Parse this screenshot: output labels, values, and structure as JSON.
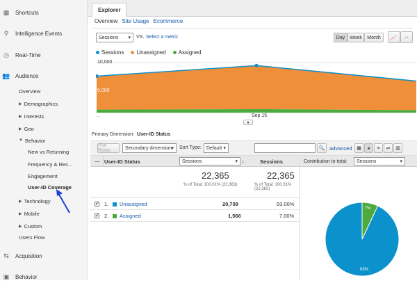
{
  "sidebar": {
    "shortcuts": "Shortcuts",
    "intelligence": "Intelligence Events",
    "realtime": "Real-Time",
    "audience": "Audience",
    "overview": "Overview",
    "demographics": "Demographics",
    "interests": "Interests",
    "geo": "Geo",
    "behavior": "Behavior",
    "new_vs_returning": "New vs Returning",
    "frequency": "Frequency & Rec...",
    "engagement": "Engagement",
    "userid_coverage": "User-ID Coverage",
    "technology": "Technology",
    "mobile": "Mobile",
    "custom": "Custom",
    "users_flow": "Users Flow",
    "acquisition": "Acquisition",
    "behavior_main": "Behavior"
  },
  "explorer": {
    "tab": "Explorer",
    "subtabs": [
      "Overview",
      "Site Usage",
      "Ecommerce"
    ],
    "metric_select": "Sessions",
    "vs": "VS.",
    "select_metric": "Select a metric",
    "day": "Day",
    "week": "Week",
    "month": "Month"
  },
  "legend": {
    "sessions": "Sessions",
    "unassigned": "Unassigned",
    "assigned": "Assigned"
  },
  "chart_data": {
    "type": "area",
    "y_tick_top": "10,000",
    "y_tick_mid": "5,000",
    "x_tick": "Sep 15",
    "x_tick_left": "...",
    "series": [
      {
        "name": "Sessions",
        "values": [
          7300,
          9400,
          6300
        ]
      },
      {
        "name": "Unassigned",
        "values": [
          6700,
          8800,
          5900
        ]
      },
      {
        "name": "Assigned",
        "values": [
          600,
          700,
          500
        ]
      }
    ],
    "ylim": [
      0,
      10000
    ],
    "colors": {
      "sessions": "#0b91cc",
      "unassigned": "#ef8f3a",
      "assigned": "#4caa3e"
    }
  },
  "table": {
    "primary_dimension_label": "Primary Dimension:",
    "primary_dimension_value": "User-ID Status",
    "plot_rows": "Plot Rows",
    "secondary_dimension": "Secondary dimension",
    "sort_type_label": "Sort Type:",
    "sort_type_value": "Default",
    "search_placeholder": "",
    "advanced": "advanced",
    "col_status": "User-ID Status",
    "col_sessions_select": "Sessions",
    "col_sessions": "Sessions",
    "contribution_label": "Contribution to total:",
    "contribution_select": "Sessions",
    "total1": "22,365",
    "total1_sub": "% of Total: 100.01% (22,363)",
    "total2": "22,365",
    "total2_sub": "% of Total: 100.01% (22,363)",
    "rows": [
      {
        "num": "1.",
        "label": "Unassigned",
        "sessions": "20,799",
        "pct": "93.00%",
        "color": "#0b91cc"
      },
      {
        "num": "2.",
        "label": "Assigned",
        "sessions": "1,566",
        "pct": "7.00%",
        "color": "#4caa3e"
      }
    ]
  },
  "pie": {
    "label_big": "93%",
    "label_small": "7%",
    "values": [
      93,
      7
    ]
  }
}
